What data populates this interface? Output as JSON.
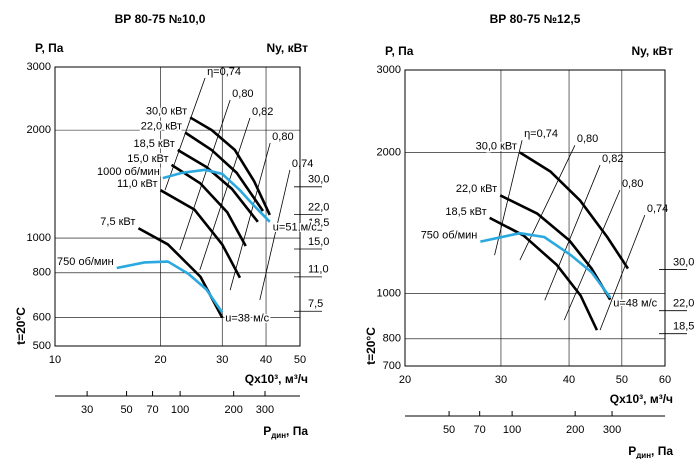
{
  "chart_data": [
    {
      "type": "line",
      "title": "ВР 80-75 №10,0",
      "ylabel": "P, Па",
      "y2label": "Ny, кВт",
      "xlabel": "Qx10³, м³/ч",
      "side_label": "t=20°C",
      "x2label": "P",
      "x2label_sub": "дин",
      "x2label_unit": ", Па",
      "xscale": "log",
      "yscale": "log",
      "y2scale": "log",
      "x2scale": "log",
      "grid": true,
      "xlim": [
        10,
        50
      ],
      "xticks": [
        10,
        20,
        30,
        40,
        50
      ],
      "ylim": [
        500,
        3000
      ],
      "yticks": [
        500,
        600,
        800,
        1000,
        2000,
        3000
      ],
      "y2lim": [
        5.09,
        114
      ],
      "y2ticks": [
        {
          "value": 30,
          "label": "30,0"
        },
        {
          "value": 22,
          "label": "22,0"
        },
        {
          "value": 18.5,
          "label": "18,5"
        },
        {
          "value": 15,
          "label": "15,0"
        },
        {
          "value": 11,
          "label": "11,0"
        },
        {
          "value": 7.5,
          "label": "7,5"
        }
      ],
      "x2lim": [
        19.8,
        472
      ],
      "x2ticks": [
        30,
        50,
        70,
        100,
        200,
        300
      ],
      "series": [
        {
          "name": "30,0 кВт",
          "color": "#000000",
          "x": [
            24.3,
            28,
            32.6,
            37,
            41
          ],
          "values": [
            2170,
            2000,
            1760,
            1440,
            1160
          ]
        },
        {
          "name": "22,0 кВт",
          "color": "#000000",
          "x": [
            23.5,
            28,
            33,
            39.2
          ],
          "values": [
            1970,
            1760,
            1520,
            1190
          ]
        },
        {
          "name": "18,5 кВт",
          "color": "#000000",
          "x": [
            22.4,
            27,
            32,
            37.9
          ],
          "values": [
            1760,
            1580,
            1370,
            1110
          ]
        },
        {
          "name": "15,0 кВт",
          "color": "#000000",
          "x": [
            21.5,
            26,
            31,
            35
          ],
          "values": [
            1600,
            1420,
            1180,
            950
          ]
        },
        {
          "name": "11,0 кВт",
          "color": "#000000",
          "x": [
            20,
            25,
            30,
            33.7
          ],
          "values": [
            1360,
            1200,
            960,
            775
          ]
        },
        {
          "name": "7,5 кВт",
          "color": "#000000",
          "x": [
            17.3,
            21,
            26,
            30
          ],
          "values": [
            1065,
            960,
            780,
            600
          ]
        },
        {
          "name": "1000 об/мин",
          "color": "#29a9e0",
          "end_label": "u=51 м/с",
          "x": [
            20.3,
            23,
            26.8,
            30,
            33.7,
            37,
            41
          ],
          "values": [
            1470,
            1520,
            1550,
            1510,
            1360,
            1230,
            1110
          ]
        },
        {
          "name": "750 об/мин",
          "color": "#29a9e0",
          "end_label": "u=38 м/с",
          "x": [
            15,
            18,
            21,
            24,
            27,
            30
          ],
          "values": [
            825,
            855,
            860,
            795,
            720,
            620
          ]
        }
      ],
      "eta_lines": [
        {
          "label": "η=0,74",
          "x": [
            20.6,
            26.8
          ],
          "values": [
            1361,
            2796
          ]
        },
        {
          "label": "0,80",
          "x": [
            22.7,
            31.6
          ],
          "values": [
            927,
            2427
          ]
        },
        {
          "label": "0,82",
          "x": [
            25.9,
            36
          ],
          "values": [
            815,
            2163
          ]
        },
        {
          "label": "0,80",
          "x": [
            31.6,
            41.1
          ],
          "values": [
            716,
            1842
          ]
        },
        {
          "label": "0,74",
          "x": [
            38.4,
            46.8
          ],
          "values": [
            672,
            1549
          ]
        }
      ]
    },
    {
      "type": "line",
      "title": "ВР 80-75 №12,5",
      "ylabel": "P, Па",
      "y2label": "Ny, кВт",
      "xlabel": "Qx10³, м³/ч",
      "side_label": "t=20°C",
      "x2label": "P",
      "x2label_sub": "дин",
      "x2label_unit": ", Па",
      "xscale": "log",
      "yscale": "log",
      "y2scale": "log",
      "x2scale": "log",
      "grid": true,
      "xlim": [
        20,
        60
      ],
      "xticks": [
        20,
        30,
        40,
        50,
        60
      ],
      "ylim": [
        700,
        3000
      ],
      "yticks": [
        700,
        800,
        1000,
        2000,
        3000
      ],
      "y2lim": [
        14.5,
        135
      ],
      "y2ticks": [
        {
          "value": 30,
          "label": "30,0"
        },
        {
          "value": 22,
          "label": "22,0"
        },
        {
          "value": 18.5,
          "label": "18,5"
        }
      ],
      "x2lim": [
        30.8,
        537
      ],
      "x2ticks": [
        50,
        70,
        100,
        200,
        300
      ],
      "series": [
        {
          "name": "30,0 кВт",
          "color": "#000000",
          "x": [
            32.5,
            37,
            41.9,
            47,
            51.3
          ],
          "values": [
            2000,
            1820,
            1580,
            1320,
            1130
          ]
        },
        {
          "name": "22,0 кВт",
          "color": "#000000",
          "x": [
            29.9,
            35,
            40,
            44,
            47.6
          ],
          "values": [
            1620,
            1480,
            1300,
            1130,
            970
          ]
        },
        {
          "name": "18,5 кВт",
          "color": "#000000",
          "x": [
            28.6,
            33,
            38,
            42,
            45
          ],
          "values": [
            1450,
            1330,
            1150,
            990,
            835
          ]
        },
        {
          "name": "750 об/мин",
          "color": "#29a9e0",
          "end_label": "u=48 м/с",
          "x": [
            27.5,
            32.5,
            36,
            40.2,
            44,
            47.6
          ],
          "values": [
            1290,
            1345,
            1320,
            1210,
            1110,
            980
          ]
        }
      ],
      "eta_lines": [
        {
          "label": "η=0,74",
          "x": [
            29.2,
            32.8
          ],
          "values": [
            1207,
            2124
          ]
        },
        {
          "label": "0,80",
          "x": [
            32.5,
            41
          ],
          "values": [
            1178,
            2072
          ]
        },
        {
          "label": "0,82",
          "x": [
            36.1,
            45.6
          ],
          "values": [
            967,
            1880
          ]
        },
        {
          "label": "0,80",
          "x": [
            39.2,
            49.6
          ],
          "values": [
            877,
            1662
          ]
        },
        {
          "label": "0,74",
          "x": [
            45.6,
            55.1
          ],
          "values": [
            835,
            1470
          ]
        }
      ]
    }
  ]
}
